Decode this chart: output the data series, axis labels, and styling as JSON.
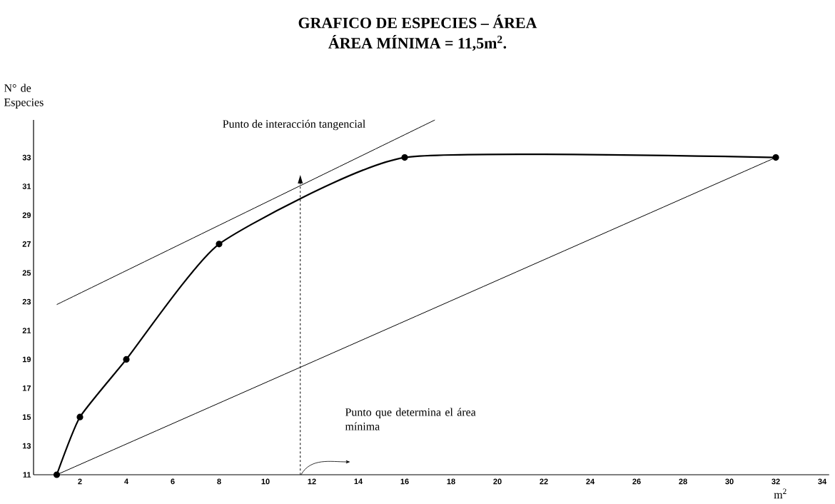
{
  "chart_data": {
    "type": "line",
    "title": "GRAFICO DE ESPECIES – ÁREA",
    "subtitle": "ÁREA MÍNIMA = 11,5m$^{2}$.",
    "xlabel": "m$^{2}$",
    "ylabel": "N° de Especies",
    "xlim": [
      0,
      34.3
    ],
    "ylim": [
      11,
      35.6
    ],
    "xticks": [
      2,
      4,
      6,
      8,
      10,
      12,
      14,
      16,
      18,
      20,
      22,
      24,
      26,
      28,
      30,
      32,
      34
    ],
    "yticks": [
      11,
      13,
      15,
      17,
      19,
      21,
      23,
      25,
      27,
      29,
      31,
      33
    ],
    "grid": false,
    "series": [
      {
        "color": "#000000",
        "marker": "circle",
        "x": [
          1,
          2,
          4,
          8,
          16,
          32
        ],
        "values": [
          11,
          15,
          19,
          27,
          33,
          33
        ]
      },
      {
        "color": "#000000",
        "marker": "none",
        "x": [
          1,
          32
        ],
        "values": [
          11,
          33
        ]
      },
      {
        "color": "#000000",
        "marker": "none",
        "x": [
          1,
          17.3
        ],
        "values": [
          22.8,
          35.6
        ]
      },
      {
        "color": "#000000",
        "marker": "none",
        "line_style": "dashed",
        "x": [
          11.5,
          11.5
        ],
        "values": [
          11,
          31.2
        ]
      }
    ],
    "annotations": [
      "Punto de interacción tangencial",
      "Punto  que determina el área mínima"
    ]
  }
}
